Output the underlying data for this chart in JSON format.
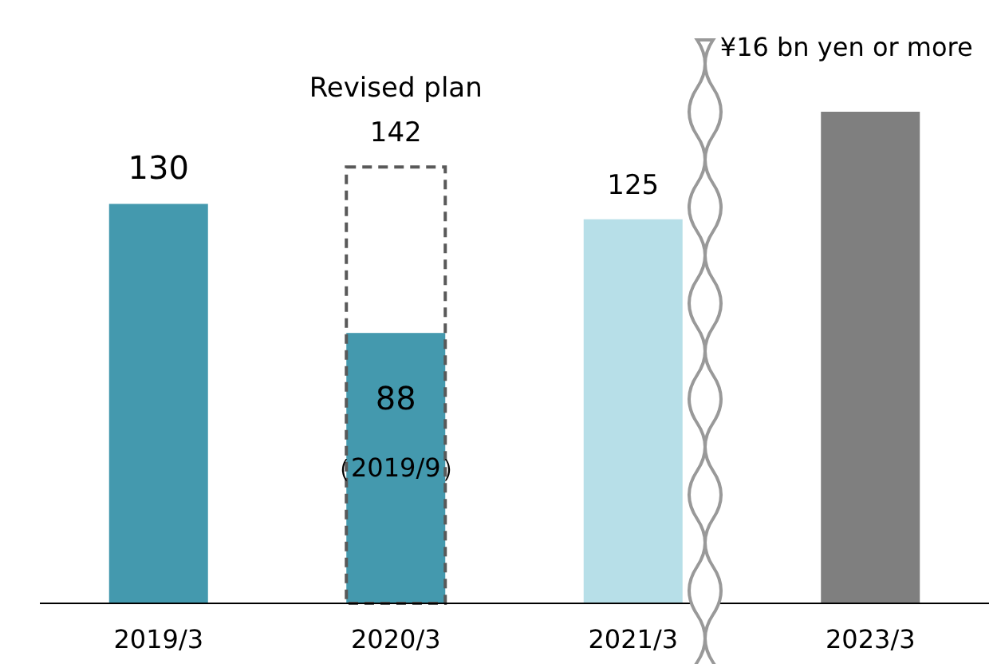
{
  "chart_data": {
    "type": "bar",
    "categories": [
      "2019/3",
      "2020/3",
      "2021/3",
      "2023/3"
    ],
    "series": [
      {
        "colors": [
          "#4499ae",
          "#4499ae",
          "#b7dfe8",
          "#7f7f7f"
        ],
        "values": [
          130,
          88,
          125,
          160
        ],
        "value_labels": [
          "130",
          "88",
          "125",
          null
        ]
      },
      {
        "name": "Revised plan",
        "color": "#595959",
        "line_style": "dashed",
        "values": [
          null,
          142,
          null,
          null
        ],
        "value_labels": [
          null,
          "142",
          null,
          null
        ]
      }
    ],
    "annotations": [
      "（2019/9）",
      {
        "text": "¥16 bn yen or more",
        "x": "2023/3",
        "y": 160
      }
    ]
  }
}
